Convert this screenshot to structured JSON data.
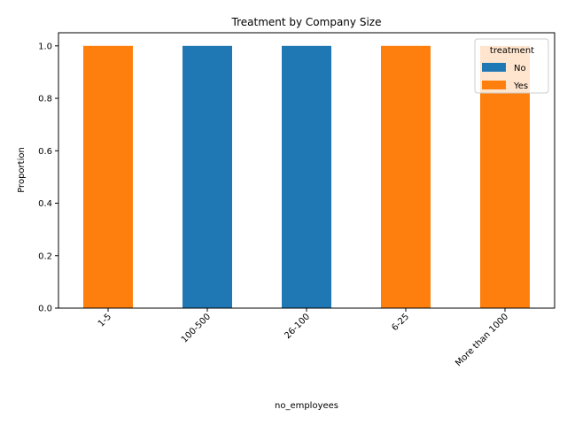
{
  "chart_data": {
    "type": "bar",
    "stacked": true,
    "title": "Treatment by Company Size",
    "xlabel": "no_employees",
    "ylabel": "Proportion",
    "categories": [
      "1-5",
      "100-500",
      "26-100",
      "6-25",
      "More than 1000"
    ],
    "series": [
      {
        "name": "No",
        "color": "#1f77b4",
        "values": [
          0,
          1,
          1,
          0,
          0
        ]
      },
      {
        "name": "Yes",
        "color": "#ff7f0e",
        "values": [
          1,
          0,
          0,
          1,
          1
        ]
      }
    ],
    "ylim": [
      0,
      1.05
    ],
    "yticks": [
      "0.0",
      "0.2",
      "0.4",
      "0.6",
      "0.8",
      "1.0"
    ],
    "xtick_rotation": 45,
    "grid": false,
    "legend": {
      "title": "treatment",
      "placement": "top-right"
    }
  }
}
